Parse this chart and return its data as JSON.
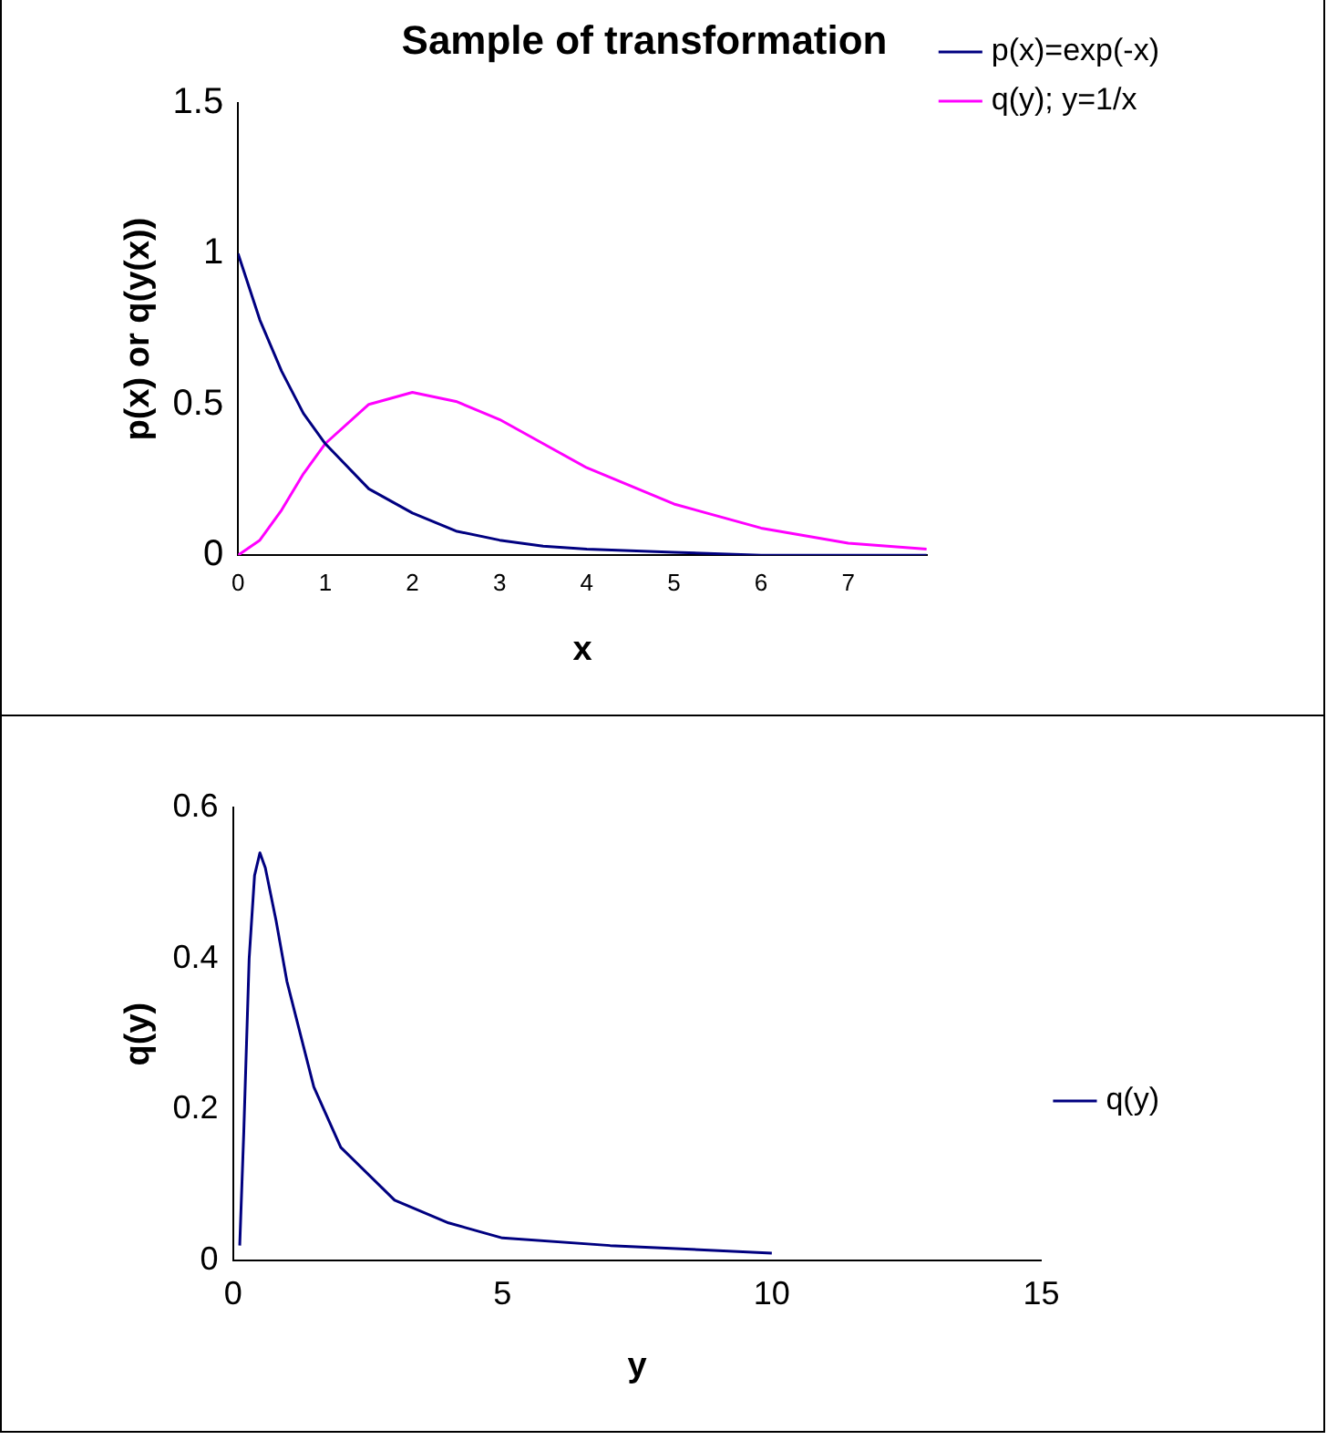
{
  "chart_data": [
    {
      "type": "line",
      "title": "Sample of transformation",
      "xlabel": "x",
      "ylabel": "p(x) or q(y(x))",
      "x": [
        0,
        0.25,
        0.5,
        0.75,
        1,
        1.5,
        2,
        2.5,
        3,
        3.5,
        4,
        5,
        6,
        7,
        7.9
      ],
      "xlim": [
        0,
        7.9
      ],
      "xticks": [
        0,
        1,
        2,
        3,
        4,
        5,
        6,
        7
      ],
      "ylim": [
        0,
        1.5
      ],
      "yticks": [
        0,
        0.5,
        1,
        1.5
      ],
      "grid": false,
      "legend": "top right",
      "marker": "none",
      "line_style": "solid",
      "series": [
        {
          "name": "p(x)=exp(-x)",
          "color": "#000080",
          "values": [
            1,
            0.78,
            0.61,
            0.47,
            0.37,
            0.22,
            0.14,
            0.08,
            0.05,
            0.03,
            0.02,
            0.01,
            0,
            0,
            0
          ]
        },
        {
          "name": "q(y); y=1/x",
          "color": "#ff00ff",
          "values": [
            0,
            0.05,
            0.15,
            0.27,
            0.37,
            0.5,
            0.54,
            0.51,
            0.45,
            0.37,
            0.29,
            0.17,
            0.09,
            0.04,
            0.02
          ]
        }
      ]
    },
    {
      "type": "line",
      "xlabel": "y",
      "ylabel": "q(y)",
      "x": [
        0.125,
        0.2,
        0.3,
        0.4,
        0.5,
        0.6,
        0.8,
        1,
        1.5,
        2,
        3,
        4,
        5,
        7,
        10
      ],
      "xlim": [
        0,
        15
      ],
      "xticks": [
        0,
        5,
        10,
        15
      ],
      "ylim": [
        0,
        0.6
      ],
      "yticks": [
        0,
        0.2,
        0.4,
        0.6
      ],
      "grid": false,
      "legend": "right",
      "marker": "none",
      "line_style": "solid",
      "series": [
        {
          "name": "q(y)",
          "color": "#000080",
          "values": [
            0.02,
            0.17,
            0.4,
            0.51,
            0.54,
            0.52,
            0.45,
            0.37,
            0.23,
            0.15,
            0.08,
            0.05,
            0.03,
            0.02,
            0.01
          ]
        }
      ]
    }
  ]
}
